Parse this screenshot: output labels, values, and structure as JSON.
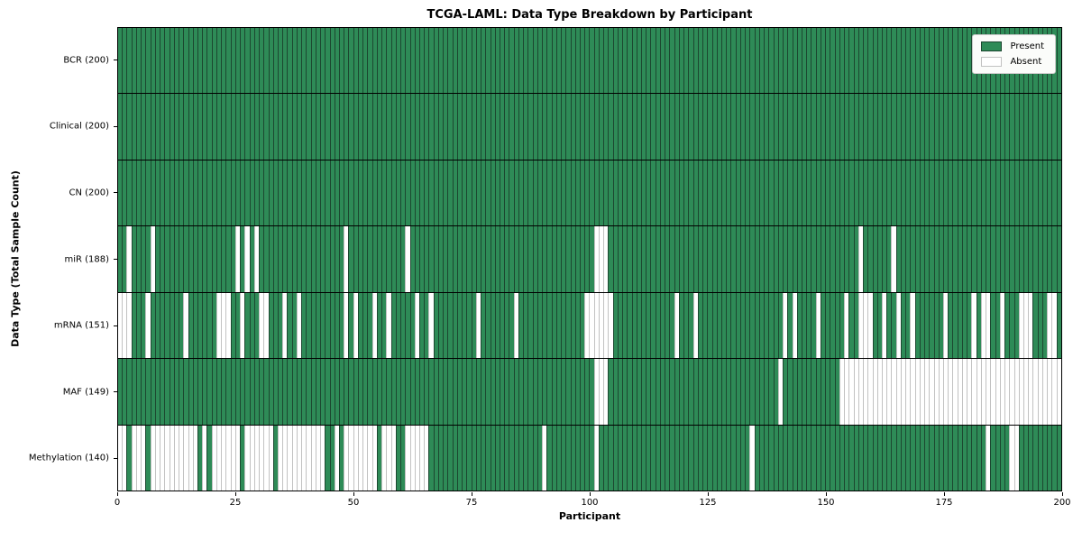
{
  "title": "TCGA-LAML: Data Type Breakdown by Participant",
  "xlabel": "Participant",
  "ylabel": "Data Type (Total Sample Count)",
  "legend": {
    "present_label": "Present",
    "absent_label": "Absent"
  },
  "colors": {
    "present": "#2e8b57",
    "present_edge": "#1c4730",
    "absent": "#ffffff",
    "absent_edge": "#c2c2c2",
    "row_divider": "#000000",
    "spine": "#000000"
  },
  "chart_data": {
    "type": "heatmap",
    "subtype": "presence-absence-matrix",
    "x_axis": {
      "label": "Participant",
      "min": 0,
      "max": 200,
      "ticks": [
        0,
        25,
        50,
        75,
        100,
        125,
        150,
        175,
        200
      ]
    },
    "y_axis": {
      "label": "Data Type (Total Sample Count)"
    },
    "n_participants": 200,
    "legend_position": "upper-right",
    "grid": false,
    "rows": [
      {
        "name": "BCR",
        "label": "BCR (200)",
        "present_count": 200,
        "absent": []
      },
      {
        "name": "Clinical",
        "label": "Clinical (200)",
        "present_count": 200,
        "absent": []
      },
      {
        "name": "CN",
        "label": "CN (200)",
        "present_count": 200,
        "absent": []
      },
      {
        "name": "miR",
        "label": "miR (188)",
        "present_count": 188,
        "absent": [
          2,
          7,
          25,
          27,
          29,
          48,
          61,
          101,
          102,
          103,
          157,
          164
        ]
      },
      {
        "name": "mRNA",
        "label": "mRNA (151)",
        "present_count": 151,
        "absent": [
          0,
          1,
          2,
          6,
          14,
          21,
          22,
          23,
          26,
          30,
          31,
          35,
          38,
          48,
          50,
          54,
          57,
          63,
          66,
          76,
          84,
          99,
          100,
          101,
          102,
          103,
          104,
          118,
          122,
          141,
          143,
          148,
          154,
          157,
          158,
          159,
          162,
          165,
          168,
          175,
          181,
          183,
          184,
          187,
          191,
          192,
          193,
          197,
          198
        ]
      },
      {
        "name": "MAF",
        "label": "MAF (149)",
        "present_count": 149,
        "absent": [
          101,
          102,
          103,
          140,
          153,
          154,
          155,
          156,
          157,
          158,
          159,
          160,
          161,
          162,
          163,
          164,
          165,
          166,
          167,
          168,
          169,
          170,
          171,
          172,
          173,
          174,
          175,
          176,
          177,
          178,
          179,
          180,
          181,
          182,
          183,
          184,
          185,
          186,
          187,
          188,
          189,
          190,
          191,
          192,
          193,
          194,
          195,
          196,
          197,
          198,
          199
        ]
      },
      {
        "name": "Methylation",
        "label": "Methylation (140)",
        "present_count": 140,
        "absent": [
          0,
          1,
          3,
          4,
          5,
          7,
          8,
          9,
          10,
          11,
          12,
          13,
          14,
          15,
          16,
          18,
          20,
          21,
          22,
          23,
          24,
          25,
          27,
          28,
          29,
          30,
          31,
          32,
          34,
          35,
          36,
          37,
          38,
          39,
          40,
          41,
          42,
          43,
          46,
          48,
          49,
          50,
          51,
          52,
          53,
          54,
          56,
          57,
          58,
          61,
          62,
          63,
          64,
          65,
          90,
          101,
          134,
          184,
          189,
          190
        ]
      }
    ]
  }
}
